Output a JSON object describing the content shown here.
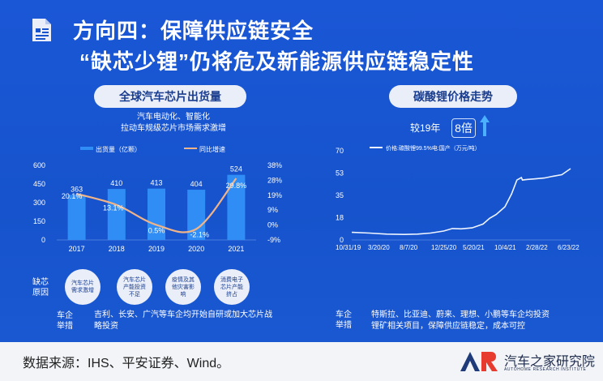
{
  "header": {
    "title_line1": "方向四：保障供应链安全",
    "title_line2": "“缺芯少锂”仍将危及新能源供应链稳定性"
  },
  "left": {
    "pill": "全球汽车芯片出货量",
    "subtitle": "汽车电动化、智能化\n拉动车规级芯片市场需求激增",
    "reason_label": "缺芯\n原因",
    "reasons": [
      "汽车芯片\n需求激增",
      "汽车芯片\n产能投资\n不足",
      "疫情及其\n他灾害影\n响",
      "消费电子\n芯片产能\n挤占"
    ],
    "measure_label": "车企\n举措",
    "measure_text": "吉利、长安、广汽等车企均开始自研或加大芯片战\n略投资"
  },
  "right": {
    "pill": "碳酸锂价格走势",
    "compare_label": "较19年",
    "compare_value": "8倍",
    "measure_label": "车企\n举措",
    "measure_text": "特斯拉、比亚迪、蔚来、理想、小鹏等车企均投资\n锂矿相关项目，保障供应链稳定，成本可控"
  },
  "footer": {
    "source": "数据来源：IHS、平安证券、Wind。",
    "brand": "汽车之家研究院",
    "brand_sub": "AUTOHOME RESEARCH INSTITUTE",
    "logo_text": "AR"
  },
  "colors": {
    "bar": "#2f8df5",
    "line": "#f0b488",
    "lithium": "#eef4ff",
    "pill_bg": "#e9eef8",
    "pill_text": "#1a3d8f"
  },
  "chart_data": [
    {
      "type": "bar",
      "categories": [
        "2017",
        "2018",
        "2019",
        "2020",
        "2021"
      ],
      "series": [
        {
          "name": "出货量（亿颗）",
          "values": [
            363,
            410,
            413,
            404,
            524
          ],
          "axis": "left"
        },
        {
          "name": "同比增速",
          "type": "line",
          "values": [
            20.1,
            13.1,
            0.5,
            -2.1,
            29.8
          ],
          "axis": "right",
          "unit": "%"
        }
      ],
      "data_labels": {
        "bars": [
          "363",
          "410",
          "413",
          "404",
          "524"
        ],
        "line": [
          "20.1%",
          "13.1%",
          "0.5%",
          "-2.1%",
          "29.8%"
        ]
      },
      "ylim": [
        0,
        600
      ],
      "y_ticks": [
        "600",
        "450",
        "300",
        "150",
        "0"
      ],
      "y2lim": [
        -9,
        38
      ],
      "y2_ticks": [
        "38%",
        "28%",
        "19%",
        "9%",
        "0%",
        "-9%"
      ],
      "legend": "top"
    },
    {
      "type": "line",
      "series": [
        {
          "name": "价格:碳酸锂99.5%电:国产（万元/吨）"
        }
      ],
      "x_ticks": [
        "10/31/19",
        "3/20/20",
        "8/7/20",
        "12/25/20",
        "5/20/21",
        "10/4/21",
        "2/28/22",
        "6/23/22"
      ],
      "y_ticks": [
        "70",
        "53",
        "35",
        "18",
        "0"
      ],
      "ylim": [
        0,
        70
      ],
      "points": [
        [
          0,
          6
        ],
        [
          0.08,
          5.4
        ],
        [
          0.16,
          4.6
        ],
        [
          0.24,
          4.3
        ],
        [
          0.3,
          4.6
        ],
        [
          0.36,
          5.4
        ],
        [
          0.42,
          7
        ],
        [
          0.46,
          9
        ],
        [
          0.5,
          8.7
        ],
        [
          0.55,
          9.5
        ],
        [
          0.6,
          12.5
        ],
        [
          0.63,
          17
        ],
        [
          0.66,
          20
        ],
        [
          0.7,
          26
        ],
        [
          0.73,
          36
        ],
        [
          0.755,
          47
        ],
        [
          0.775,
          49
        ],
        [
          0.78,
          47
        ],
        [
          0.8,
          47.5
        ],
        [
          0.84,
          48
        ],
        [
          0.88,
          48.6
        ],
        [
          0.92,
          50
        ],
        [
          0.96,
          51.2
        ],
        [
          1.0,
          56
        ]
      ],
      "legend": "top-left"
    }
  ]
}
